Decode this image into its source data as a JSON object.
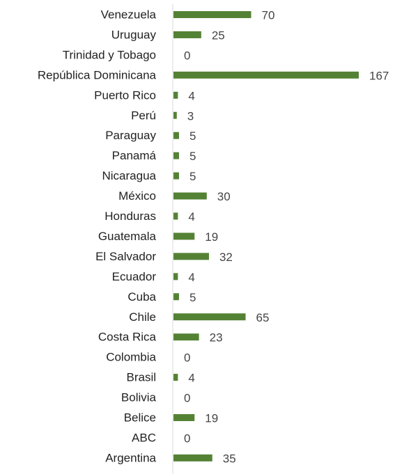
{
  "chart_data": {
    "type": "bar",
    "orientation": "horizontal",
    "title": "",
    "xlabel": "",
    "ylabel": "",
    "grid": false,
    "legend": "none",
    "bar_color": "#548235",
    "axis_color": "#d9d9d9",
    "xlim": [
      0,
      167
    ],
    "categories": [
      "Venezuela",
      "Uruguay",
      "Trinidad y Tobago",
      "República Dominicana",
      "Puerto Rico",
      "Perú",
      "Paraguay",
      "Panamá",
      "Nicaragua",
      "México",
      "Honduras",
      "Guatemala",
      "El Salvador",
      "Ecuador",
      "Cuba",
      "Chile",
      "Costa Rica",
      "Colombia",
      "Brasil",
      "Bolivia",
      "Belice",
      "ABC",
      "Argentina"
    ],
    "values": [
      70,
      25,
      0,
      167,
      4,
      3,
      5,
      5,
      5,
      30,
      4,
      19,
      32,
      4,
      5,
      65,
      23,
      0,
      4,
      0,
      19,
      0,
      35
    ]
  }
}
